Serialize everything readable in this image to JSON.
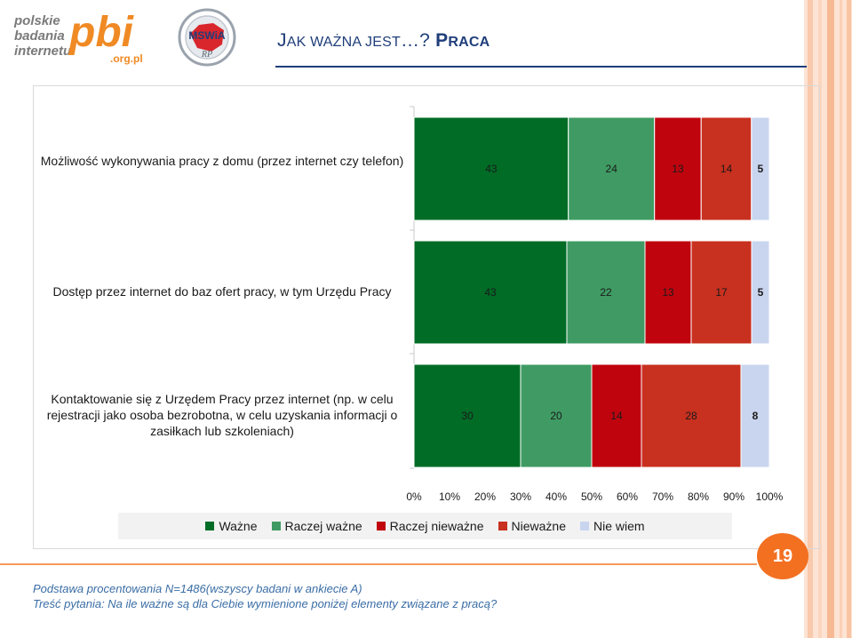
{
  "header": {
    "logo_pbi": {
      "line1": "polskie",
      "line2": "badania",
      "line3": "internetu",
      "mark": "pbi",
      "domain": ".org.pl"
    },
    "logo_mswia": {
      "mark": "MSWiA",
      "sub": "RP"
    },
    "title_lead_1": "J",
    "title_rest_1": "AK WAŻNA JEST",
    "title_ellipsis": "…?",
    "title_lead_2": "P",
    "title_rest_2": "RACA"
  },
  "chart_data": {
    "type": "bar",
    "orientation": "horizontal",
    "stacked": "percent",
    "categories": [
      "Możliwość wykonywania pracy z domu (przez internet czy telefon)",
      "Dostęp przez internet do baz ofert pracy, w tym Urzędu Pracy",
      "Kontaktowanie się z Urzędem Pracy przez internet (np. w celu rejestracji jako osoba bezrobotna, w celu uzyskania informacji o zasiłkach lub szkoleniach)"
    ],
    "series": [
      {
        "name": "Ważne",
        "color": "#006c26",
        "values": [
          43,
          43,
          30
        ]
      },
      {
        "name": "Raczej ważne",
        "color": "#3f9b63",
        "values": [
          24,
          22,
          20
        ]
      },
      {
        "name": "Raczej nieważne",
        "color": "#c0040e",
        "values": [
          13,
          13,
          14
        ]
      },
      {
        "name": "Nieważne",
        "color": "#c8301f",
        "values": [
          14,
          17,
          28
        ]
      },
      {
        "name": "Nie wiem",
        "color": "#c9d5ee",
        "values": [
          5,
          5,
          8
        ]
      }
    ],
    "x_ticks": [
      "0%",
      "10%",
      "20%",
      "30%",
      "40%",
      "50%",
      "60%",
      "70%",
      "80%",
      "90%",
      "100%"
    ],
    "xlim": [
      0,
      100
    ],
    "legend_position": "bottom",
    "grid": false
  },
  "page_number": "19",
  "footer": {
    "base": "Podstawa procentowania N=1486(wszyscy badani w ankiecie A)",
    "question": "Treść pytania: Na ile ważne są dla Ciebie wymienione poniżej elementy związane z pracą?"
  }
}
